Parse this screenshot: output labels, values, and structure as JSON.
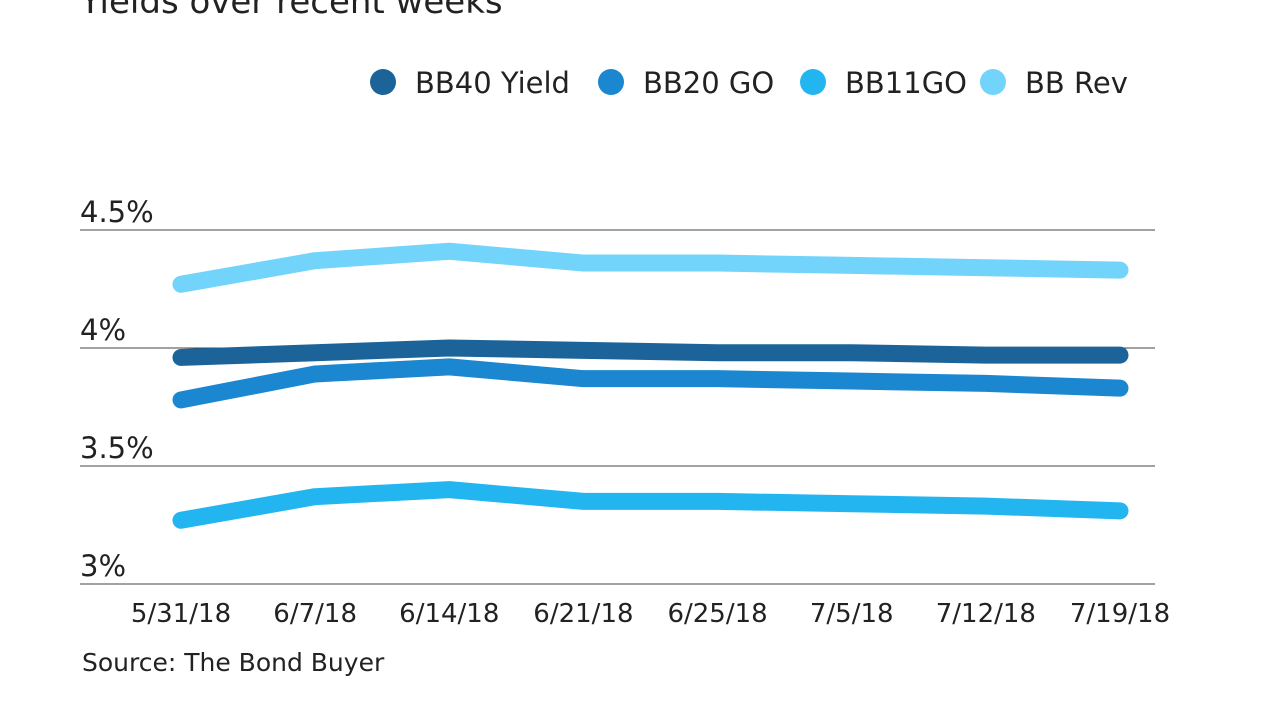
{
  "chart_data": {
    "type": "line",
    "title": "Yields over recent weeks",
    "source": "Source: The Bond Buyer",
    "xlabel": "",
    "ylabel": "",
    "categories": [
      "5/31/18",
      "6/7/18",
      "6/14/18",
      "6/21/18",
      "6/25/18",
      "7/5/18",
      "7/12/18",
      "7/19/18"
    ],
    "yticks": [
      3,
      3.5,
      4,
      4.5
    ],
    "ytick_labels": [
      "3%",
      "3.5%",
      "4%",
      "4.5%"
    ],
    "ylim": [
      3,
      4.5
    ],
    "grid": true,
    "legend_position": "top-right",
    "series": [
      {
        "name": "BB40 Yield",
        "color": "#1b6399",
        "values": [
          3.96,
          3.98,
          4.0,
          3.99,
          3.98,
          3.98,
          3.97,
          3.97
        ]
      },
      {
        "name": "BB20 GO",
        "color": "#1b87d0",
        "values": [
          3.78,
          3.89,
          3.92,
          3.87,
          3.87,
          3.86,
          3.85,
          3.83
        ]
      },
      {
        "name": "BB11GO",
        "color": "#23b5ef",
        "values": [
          3.27,
          3.37,
          3.4,
          3.35,
          3.35,
          3.34,
          3.33,
          3.31
        ]
      },
      {
        "name": "BB Rev",
        "color": "#72d3fb",
        "values": [
          4.27,
          4.37,
          4.41,
          4.36,
          4.36,
          4.35,
          4.34,
          4.33
        ]
      }
    ]
  }
}
